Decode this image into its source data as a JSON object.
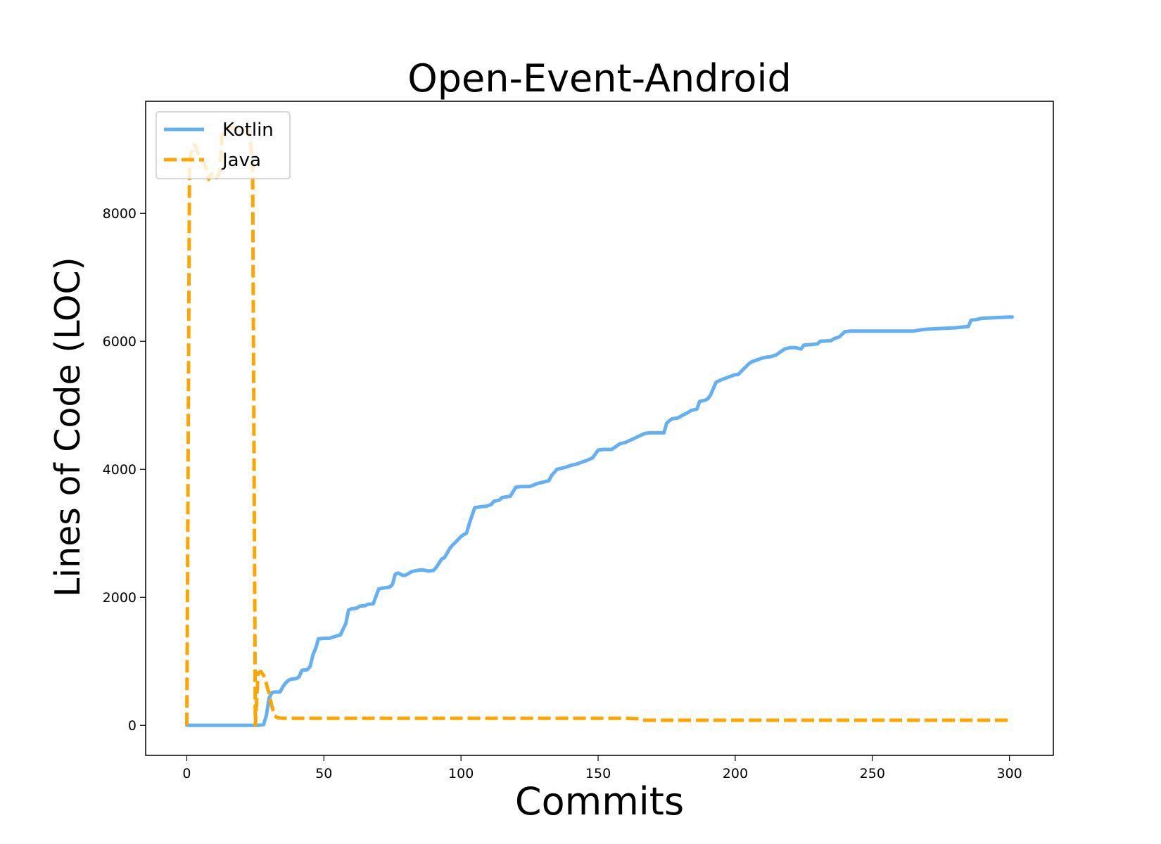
{
  "chart_data": {
    "type": "line",
    "title": "Open-Event-Android",
    "xlabel": "Commits",
    "ylabel": "Lines of Code (LOC)",
    "xlim": [
      -15,
      316
    ],
    "ylim": [
      -470,
      9750
    ],
    "xticks": [
      0,
      50,
      100,
      150,
      200,
      250,
      300
    ],
    "yticks": [
      0,
      2000,
      4000,
      6000,
      8000
    ],
    "grid": false,
    "legend_position": "upper-left",
    "colors": {
      "Kotlin": "#64b0f5",
      "Java": "#ffa500"
    },
    "series": [
      {
        "name": "Kotlin",
        "style": "solid",
        "x": [
          0,
          26,
          28,
          29,
          30,
          31,
          32,
          34,
          35,
          36,
          37,
          38,
          40,
          41,
          42,
          44,
          45,
          46,
          47,
          48,
          50,
          51,
          52,
          55,
          56,
          58,
          59,
          60,
          62,
          63,
          65,
          66,
          68,
          70,
          71,
          74,
          75,
          76,
          77,
          78,
          79,
          80,
          82,
          84,
          86,
          87,
          88,
          90,
          91,
          93,
          94,
          96,
          97,
          98,
          100,
          101,
          102,
          103,
          105,
          108,
          109,
          111,
          112,
          114,
          115,
          118,
          120,
          122,
          125,
          128,
          130,
          132,
          133,
          135,
          136,
          138,
          140,
          142,
          144,
          146,
          148,
          150,
          152,
          155,
          158,
          160,
          163,
          165,
          167,
          169,
          174,
          175,
          176,
          177,
          179,
          181,
          182,
          184,
          186,
          187,
          189,
          190,
          191,
          193,
          194,
          195,
          200,
          201,
          205,
          206,
          208,
          210,
          211,
          213,
          215,
          218,
          220,
          222,
          224,
          225,
          228,
          230,
          231,
          235,
          236,
          238,
          240,
          242,
          250,
          265,
          268,
          270,
          275,
          280,
          285,
          286,
          288,
          290,
          295,
          300,
          301
        ],
        "y": [
          0,
          0,
          10,
          150,
          420,
          510,
          520,
          520,
          600,
          660,
          700,
          720,
          730,
          760,
          860,
          870,
          920,
          1100,
          1200,
          1350,
          1360,
          1360,
          1360,
          1400,
          1410,
          1590,
          1800,
          1820,
          1830,
          1860,
          1870,
          1890,
          1900,
          2130,
          2140,
          2160,
          2200,
          2360,
          2380,
          2360,
          2340,
          2350,
          2400,
          2420,
          2430,
          2420,
          2410,
          2420,
          2470,
          2600,
          2620,
          2770,
          2820,
          2860,
          2950,
          2980,
          3000,
          3150,
          3400,
          3420,
          3420,
          3450,
          3500,
          3520,
          3560,
          3580,
          3720,
          3730,
          3730,
          3780,
          3800,
          3820,
          3900,
          4000,
          4010,
          4030,
          4060,
          4080,
          4110,
          4140,
          4180,
          4300,
          4310,
          4310,
          4400,
          4420,
          4480,
          4520,
          4560,
          4570,
          4570,
          4720,
          4760,
          4790,
          4800,
          4850,
          4870,
          4920,
          4940,
          5060,
          5080,
          5100,
          5160,
          5360,
          5380,
          5400,
          5480,
          5480,
          5650,
          5680,
          5710,
          5740,
          5750,
          5760,
          5790,
          5880,
          5900,
          5900,
          5880,
          5940,
          5950,
          5960,
          6000,
          6010,
          6040,
          6070,
          6150,
          6160,
          6160,
          6160,
          6180,
          6190,
          6200,
          6210,
          6230,
          6330,
          6340,
          6360,
          6370,
          6380,
          6380
        ]
      },
      {
        "name": "Java",
        "style": "dashed",
        "x": [
          0,
          1,
          2,
          3,
          4,
          5,
          6,
          7,
          8,
          9,
          10,
          11,
          12,
          13,
          14,
          15,
          16,
          18,
          20,
          22,
          23,
          24,
          25,
          26,
          27,
          28,
          29,
          30,
          31,
          32,
          33,
          35,
          40,
          60,
          100,
          140,
          160,
          165,
          166,
          200,
          250,
          301
        ],
        "y": [
          0,
          8780,
          9050,
          9070,
          8950,
          8880,
          8800,
          8720,
          8530,
          8620,
          8540,
          8560,
          8640,
          9250,
          9320,
          9320,
          9340,
          9320,
          9280,
          9300,
          9200,
          8760,
          0,
          820,
          840,
          780,
          650,
          500,
          300,
          150,
          120,
          110,
          110,
          110,
          110,
          110,
          110,
          100,
          80,
          80,
          80,
          80
        ]
      }
    ]
  }
}
